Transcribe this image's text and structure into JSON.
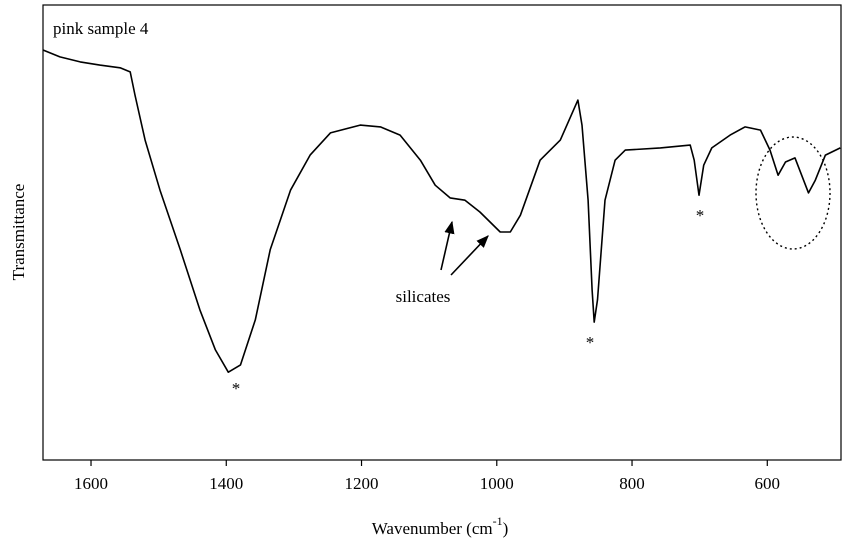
{
  "chart_data": {
    "type": "line",
    "label": "pink sample 4",
    "xlabel": {
      "text": "Wavenumber (cm",
      "superscript": "-1",
      "suffix": ")"
    },
    "ylabel": "Transmittance",
    "x": [
      1671,
      1646,
      1616,
      1587,
      1557,
      1542,
      1535,
      1520,
      1498,
      1468,
      1439,
      1416,
      1397,
      1379,
      1357,
      1335,
      1305,
      1276,
      1246,
      1202,
      1172,
      1143,
      1113,
      1091,
      1069,
      1047,
      1025,
      995,
      980,
      965,
      936,
      906,
      880,
      874,
      865,
      859,
      856,
      851,
      840,
      825,
      810,
      758,
      714,
      708,
      701,
      694,
      682,
      655,
      633,
      610,
      596,
      584,
      573,
      559,
      539,
      529,
      514,
      492
    ],
    "values": [
      90.1,
      88.6,
      87.5,
      86.8,
      86.2,
      85.3,
      80.2,
      70.3,
      59.3,
      46.2,
      33.0,
      24.2,
      19.3,
      20.9,
      30.8,
      46.2,
      59.3,
      67.0,
      71.9,
      73.6,
      73.2,
      71.4,
      65.9,
      60.4,
      57.6,
      57.1,
      54.5,
      50.1,
      50.1,
      53.8,
      65.9,
      70.3,
      79.1,
      73.6,
      57.1,
      37.4,
      30.3,
      35.2,
      57.1,
      65.9,
      68.1,
      68.6,
      69.2,
      65.9,
      58.2,
      64.8,
      68.6,
      71.4,
      73.2,
      72.5,
      68.1,
      62.6,
      65.5,
      66.4,
      58.7,
      61.5,
      67.0,
      68.6
    ],
    "color": "#000000",
    "xlim": [
      1671,
      491
    ],
    "ylim": [
      0,
      100
    ],
    "xticks": [
      1600,
      1400,
      1200,
      1000,
      800,
      600
    ],
    "annotations": [
      "*",
      "*",
      "*",
      "silicates"
    ]
  }
}
